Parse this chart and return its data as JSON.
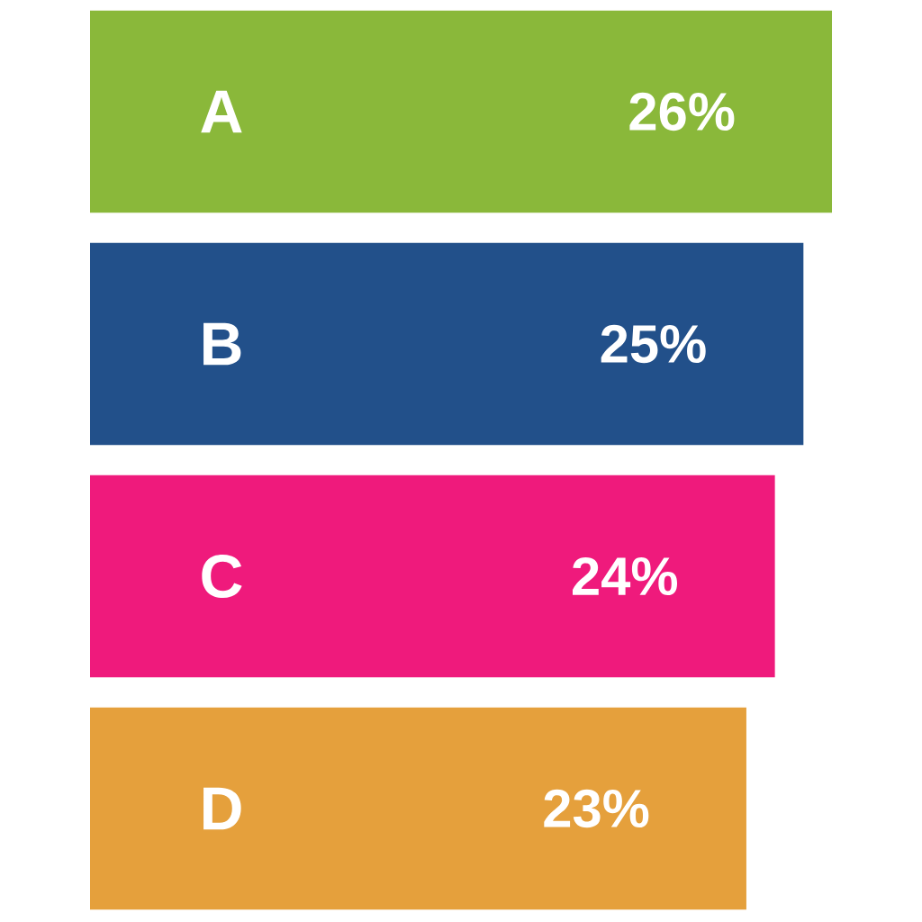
{
  "chart_data": {
    "type": "bar",
    "orientation": "horizontal",
    "categories": [
      "A",
      "B",
      "C",
      "D"
    ],
    "values": [
      26,
      25,
      24,
      23
    ],
    "value_labels": [
      "26%",
      "25%",
      "24%",
      "23%"
    ],
    "colors": [
      "#8ab83a",
      "#22508a",
      "#ef1a7c",
      "#e5a03c"
    ]
  }
}
